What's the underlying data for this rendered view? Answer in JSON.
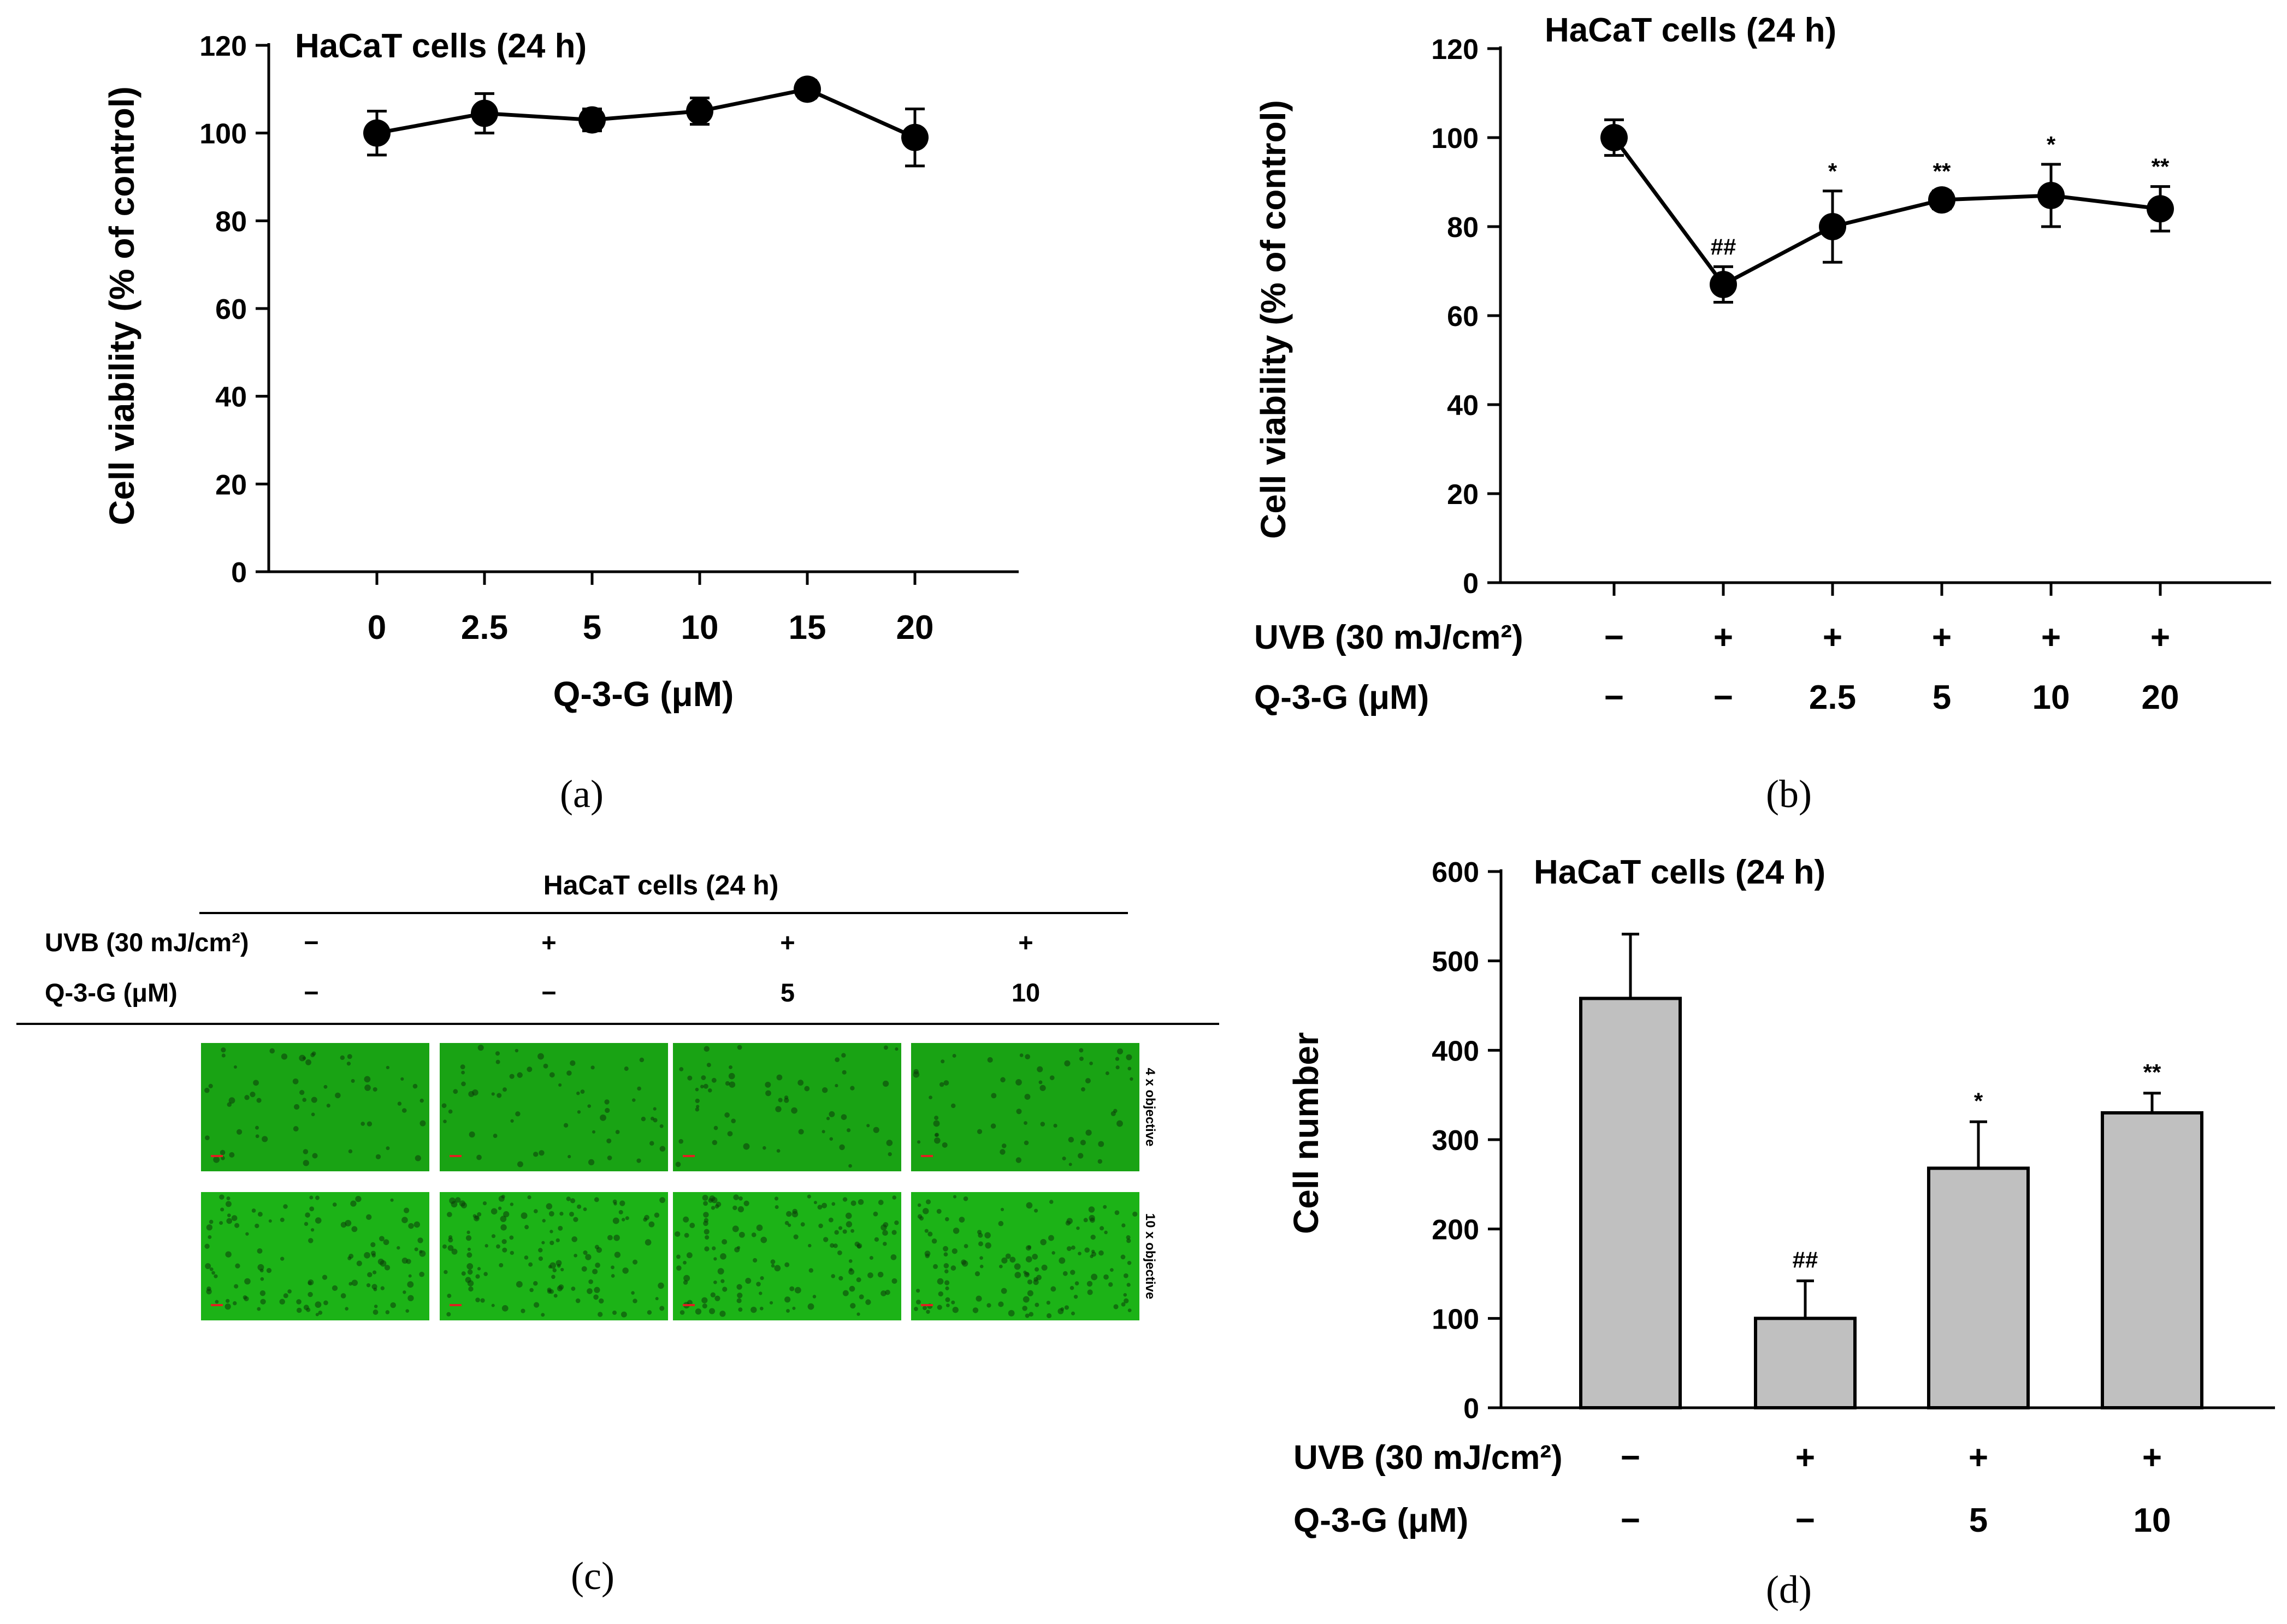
{
  "chart_data": [
    {
      "panel": "a",
      "type": "line",
      "title": "HaCaT cells (24 h)",
      "ylabel": "Cell viability (% of control)",
      "xlabel": "Q-3-G (μM)",
      "ylim": [
        0,
        120
      ],
      "yticks": [
        "0",
        "20",
        "40",
        "60",
        "80",
        "100",
        "120"
      ],
      "categories": [
        "0",
        "2.5",
        "5",
        "10",
        "15",
        "20"
      ],
      "values": [
        100,
        104.5,
        103,
        105,
        110,
        99
      ],
      "errors": [
        5,
        4.5,
        2.5,
        3,
        2,
        6.5
      ],
      "caption": "(a)"
    },
    {
      "panel": "b",
      "type": "line",
      "title": "HaCaT cells (24 h)",
      "ylabel": "Cell viability (% of control)",
      "ylim": [
        0,
        120
      ],
      "yticks": [
        "0",
        "20",
        "40",
        "60",
        "80",
        "100",
        "120"
      ],
      "row_labels": [
        "UVB (30 mJ/cm²)",
        "Q-3-G (μM)"
      ],
      "uvb": [
        "−",
        "+",
        "+",
        "+",
        "+",
        "+"
      ],
      "q3g": [
        "−",
        "−",
        "2.5",
        "5",
        "10",
        "20"
      ],
      "values": [
        100,
        67,
        80,
        86,
        87,
        84
      ],
      "errors": [
        4,
        4,
        8,
        2,
        7,
        5
      ],
      "annotations": [
        "",
        "##",
        "*",
        "**",
        "*",
        "**"
      ],
      "caption": "(b)"
    },
    {
      "panel": "c",
      "type": "table",
      "title": "HaCaT cells (24 h)",
      "row_labels": [
        "UVB (30 mJ/cm²)",
        "Q-3-G (μM)"
      ],
      "uvb": [
        "−",
        "+",
        "+",
        "+"
      ],
      "q3g": [
        "−",
        "−",
        "5",
        "10"
      ],
      "image_rows": [
        "4 x objective",
        "10 x objective"
      ],
      "caption": "(c)"
    },
    {
      "panel": "d",
      "type": "bar",
      "title": "HaCaT cells (24 h)",
      "ylabel": "Cell number",
      "ylim": [
        0,
        600
      ],
      "yticks": [
        "0",
        "100",
        "200",
        "300",
        "400",
        "500",
        "600"
      ],
      "row_labels": [
        "UVB (30 mJ/cm²)",
        "Q-3-G (μM)"
      ],
      "uvb": [
        "−",
        "+",
        "+",
        "+"
      ],
      "q3g": [
        "−",
        "−",
        "5",
        "10"
      ],
      "values": [
        458,
        100,
        268,
        330
      ],
      "errors": [
        72,
        42,
        52,
        22
      ],
      "annotations": [
        "",
        "##",
        "*",
        "**"
      ],
      "bar_color": "#c0c0c0",
      "caption": "(d)"
    }
  ],
  "colors": {
    "micrograph_green": "#1fc01a",
    "bar_fill": "#c0c0c0"
  }
}
